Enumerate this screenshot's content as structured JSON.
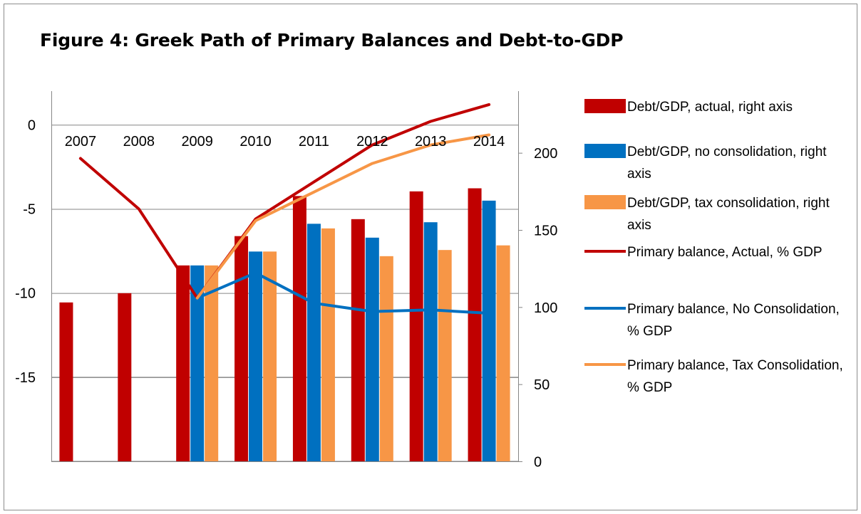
{
  "chart_data": {
    "type": "bar",
    "title": "Figure 4: Greek Path of Primary Balances and Debt-to-GDP",
    "categories": [
      "2007",
      "2008",
      "2009",
      "2010",
      "2011",
      "2012",
      "2013",
      "2014"
    ],
    "left_axis": {
      "ylim": [
        -20,
        2
      ],
      "ticks": [
        0,
        -5,
        -10,
        -15
      ],
      "grid": true
    },
    "right_axis": {
      "ylim": [
        0,
        240
      ],
      "ticks": [
        0,
        50,
        100,
        150,
        200
      ]
    },
    "bar_series": [
      {
        "name": "Debt/GDP, actual, right axis",
        "color": "#C00000",
        "values": [
          103,
          109,
          127,
          146,
          172,
          157,
          175,
          177
        ]
      },
      {
        "name": "Debt/GDP, no consolidation, right axis",
        "color": "#0070C0",
        "values": [
          null,
          null,
          127,
          136,
          154,
          145,
          155,
          169
        ]
      },
      {
        "name": "Debt/GDP, tax consolidation, right axis",
        "color": "#F79646",
        "values": [
          null,
          null,
          127,
          136,
          151,
          133,
          137,
          140
        ]
      }
    ],
    "line_series": [
      {
        "name": "Primary balance, Actual, % GDP",
        "color": "#C00000",
        "values": [
          -2.0,
          -5.0,
          -10.3,
          -5.6,
          -3.4,
          -1.2,
          0.2,
          1.2
        ]
      },
      {
        "name": "Primary balance, No Consolidation, % GDP",
        "color": "#0070C0",
        "values": [
          null,
          null,
          -10.3,
          -8.8,
          -10.6,
          -11.1,
          -11.0,
          -11.2
        ]
      },
      {
        "name": "Primary balance, Tax Consolidation, % GDP",
        "color": "#F79646",
        "values": [
          null,
          null,
          -10.3,
          -5.7,
          -4.0,
          -2.3,
          -1.2,
          -0.6
        ]
      }
    ],
    "legend_position": "right"
  }
}
